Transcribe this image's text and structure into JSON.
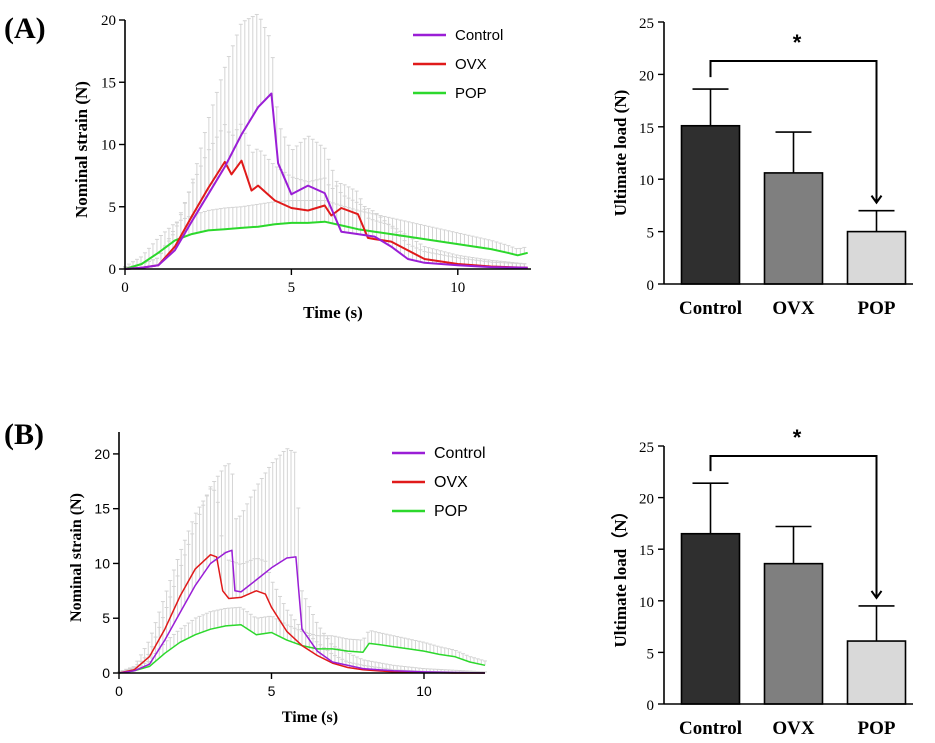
{
  "panels": {
    "a": {
      "label": "(A)"
    },
    "b": {
      "label": "(B)"
    }
  },
  "chart_data": [
    {
      "id": "a-line",
      "type": "line",
      "xlabel": "Time (s)",
      "ylabel": "Nominal strain (N)",
      "xlim": [
        0,
        12.2
      ],
      "ylim": [
        0,
        20
      ],
      "xticks": [
        "0",
        "5",
        "10"
      ],
      "yticks": [
        "0",
        "5",
        "10",
        "15",
        "20"
      ],
      "legend": [
        "Control",
        "OVX",
        "POP"
      ],
      "series": [
        {
          "name": "Control",
          "color": "#9a1ed6",
          "x": [
            0,
            0.5,
            1,
            1.5,
            2,
            2.5,
            3,
            3.5,
            4,
            4.4,
            4.6,
            5,
            5.5,
            6,
            6.5,
            7,
            7.5,
            8,
            8.5,
            9,
            10,
            11,
            12.1
          ],
          "y": [
            0,
            0.1,
            0.3,
            1.5,
            3.8,
            6,
            8.2,
            10.8,
            13,
            14.1,
            8.5,
            6,
            6.7,
            6.1,
            3,
            2.8,
            2.6,
            1.8,
            0.8,
            0.5,
            0.3,
            0.15,
            0.1
          ],
          "err": [
            0.1,
            0.3,
            0.6,
            1.5,
            3,
            6,
            8,
            9,
            7.5,
            4.2,
            3.2,
            3.5,
            4,
            3.6,
            3,
            2.5,
            2,
            1.6,
            1.2,
            0.9,
            0.6,
            0.4,
            0.3
          ]
        },
        {
          "name": "OVX",
          "color": "#e01a1a",
          "x": [
            0,
            0.5,
            1,
            1.5,
            2,
            2.5,
            3,
            3.2,
            3.5,
            3.8,
            4,
            4.5,
            5,
            5.5,
            6,
            6.2,
            6.5,
            7,
            7.3,
            7.5,
            8,
            9,
            10,
            11,
            12.1
          ],
          "y": [
            0,
            0.1,
            0.3,
            1.8,
            4.2,
            6.5,
            8.6,
            7.6,
            8.7,
            6.3,
            6.7,
            5.5,
            4.9,
            4.7,
            5.1,
            4.3,
            4.9,
            4.4,
            2.5,
            2.4,
            2.2,
            0.8,
            0.4,
            0.2,
            0.1
          ],
          "err": [
            0.1,
            0.3,
            0.6,
            1.5,
            2.5,
            3,
            3,
            3,
            3,
            3,
            3,
            2.8,
            2.5,
            2.3,
            2.2,
            2.1,
            2,
            1.8,
            1.6,
            1.5,
            1.3,
            1,
            0.7,
            0.5,
            0.3
          ]
        },
        {
          "name": "POP",
          "color": "#2cd82c",
          "x": [
            0,
            0.5,
            1,
            1.5,
            2,
            2.5,
            3,
            3.5,
            4,
            4.5,
            5,
            5.5,
            6,
            6.5,
            7,
            7.5,
            8,
            8.5,
            9,
            9.5,
            10,
            10.5,
            11,
            11.5,
            11.8,
            12.1
          ],
          "y": [
            0,
            0.4,
            1.3,
            2.3,
            2.8,
            3.1,
            3.2,
            3.3,
            3.4,
            3.6,
            3.7,
            3.7,
            3.8,
            3.5,
            3.2,
            3,
            2.8,
            2.6,
            2.4,
            2.2,
            2,
            1.8,
            1.6,
            1.3,
            1.1,
            1.3
          ],
          "err": [
            0.2,
            0.6,
            1.2,
            1.4,
            1.5,
            1.6,
            1.7,
            1.7,
            1.8,
            1.8,
            1.8,
            1.8,
            1.7,
            1.6,
            1.5,
            1.4,
            1.3,
            1.2,
            1.1,
            1,
            0.9,
            0.8,
            0.7,
            0.6,
            0.5,
            0.5
          ]
        }
      ]
    },
    {
      "id": "a-bar",
      "type": "bar",
      "ylabel": "Ultimate load (N)",
      "ylim": [
        0,
        25
      ],
      "yticks": [
        "0",
        "5",
        "10",
        "15",
        "20",
        "25"
      ],
      "categories": [
        "Control",
        "OVX",
        "POP"
      ],
      "values": [
        15.1,
        10.6,
        5.0
      ],
      "errors": [
        3.5,
        3.9,
        2.0
      ],
      "colors": [
        "#2f2f2f",
        "#7f7f7f",
        "#d9d9d9"
      ],
      "annotation": {
        "text": "*",
        "from": "Control",
        "to": "POP"
      }
    },
    {
      "id": "b-line",
      "type": "line",
      "xlabel": "Time (s)",
      "ylabel": "Nominal strain (N)",
      "xlim": [
        0,
        12
      ],
      "ylim": [
        0,
        22
      ],
      "xticks": [
        "0",
        "5",
        "10"
      ],
      "yticks": [
        "0",
        "5",
        "10",
        "15",
        "20"
      ],
      "legend": [
        "Control",
        "OVX",
        "POP"
      ],
      "series": [
        {
          "name": "Control",
          "color": "#9a1ed6",
          "x": [
            0,
            0.5,
            1,
            1.5,
            2,
            2.5,
            3,
            3.5,
            3.7,
            3.8,
            4,
            4.5,
            5,
            5.5,
            5.8,
            6,
            6.5,
            7,
            8,
            9,
            10,
            11,
            12
          ],
          "y": [
            0,
            0.2,
            0.8,
            3,
            5.5,
            8,
            10,
            11,
            11.2,
            7.5,
            7.4,
            8.5,
            9.6,
            10.5,
            10.6,
            4,
            2,
            1,
            0.4,
            0.2,
            0.1,
            0.05,
            0
          ],
          "err": [
            0.1,
            0.3,
            1,
            2.5,
            4,
            5.5,
            7,
            8,
            8,
            6.5,
            7,
            8.5,
            9.5,
            10,
            9.5,
            3.5,
            2.5,
            1.5,
            0.8,
            0.5,
            0.3,
            0.2,
            0.1
          ]
        },
        {
          "name": "OVX",
          "color": "#e01a1a",
          "x": [
            0,
            0.5,
            1,
            1.5,
            2,
            2.5,
            3,
            3.2,
            3.4,
            3.6,
            4,
            4.5,
            4.8,
            5,
            5.5,
            6,
            6.5,
            7,
            7.5,
            8,
            9,
            10,
            11,
            12
          ],
          "y": [
            0,
            0.3,
            1.5,
            4,
            7,
            9.5,
            10.8,
            10.6,
            7.5,
            6.8,
            6.9,
            7.5,
            7.2,
            6,
            3.8,
            2.5,
            1.6,
            0.9,
            0.5,
            0.3,
            0.1,
            0.05,
            0,
            0
          ],
          "err": [
            0.1,
            0.3,
            1.5,
            3,
            4,
            5,
            6,
            6,
            4,
            3.5,
            3,
            3,
            3,
            2.5,
            2,
            1.5,
            1.2,
            0.8,
            0.5,
            0.4,
            0.2,
            0.1,
            0.1,
            0.1
          ]
        },
        {
          "name": "POP",
          "color": "#2cd82c",
          "x": [
            0,
            0.5,
            1,
            1.5,
            2,
            2.5,
            3,
            3.5,
            4,
            4.5,
            5,
            5.5,
            6,
            6.5,
            7,
            7.5,
            8,
            8.2,
            8.5,
            9,
            9.5,
            10,
            10.5,
            11,
            11.5,
            12
          ],
          "y": [
            0,
            0.2,
            0.6,
            1.8,
            2.8,
            3.5,
            4,
            4.3,
            4.4,
            3.5,
            3.7,
            3,
            2.5,
            2.2,
            2.2,
            2,
            1.9,
            2.7,
            2.6,
            2.4,
            2.2,
            2,
            1.7,
            1.5,
            1,
            0.7
          ],
          "err": [
            0.1,
            0.2,
            0.5,
            1,
            1.2,
            1.5,
            1.6,
            1.6,
            1.6,
            1.5,
            1.5,
            1.4,
            1.3,
            1.2,
            1.2,
            1.1,
            1.1,
            1.2,
            1.1,
            1,
            0.9,
            0.8,
            0.7,
            0.6,
            0.5,
            0.4
          ]
        }
      ]
    },
    {
      "id": "b-bar",
      "type": "bar",
      "ylabel": "Ultimate load（N）",
      "ylim": [
        0,
        25
      ],
      "yticks": [
        "0",
        "5",
        "10",
        "15",
        "20",
        "25"
      ],
      "categories": [
        "Control",
        "OVX",
        "POP"
      ],
      "values": [
        16.5,
        13.6,
        6.1
      ],
      "errors": [
        4.9,
        3.6,
        3.4
      ],
      "colors": [
        "#2f2f2f",
        "#7f7f7f",
        "#d9d9d9"
      ],
      "annotation": {
        "text": "*",
        "from": "Control",
        "to": "POP"
      }
    }
  ]
}
